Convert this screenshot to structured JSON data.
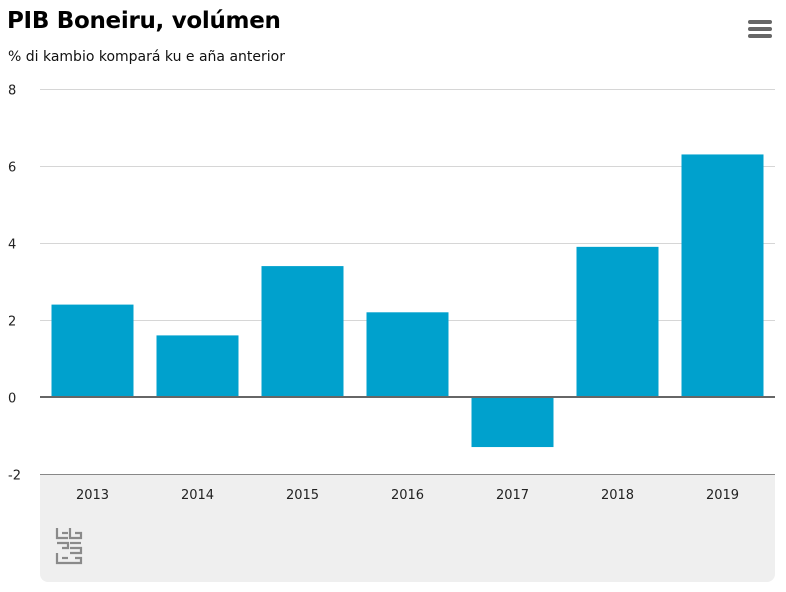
{
  "header": {
    "title": "PIB Boneiru, volúmen",
    "subtitle": "% di kambio kompará ku e aña anterior"
  },
  "menu": {
    "icon": "hamburger-menu-icon"
  },
  "logo": {
    "icon": "cbs-logo-icon",
    "text": "cbs"
  },
  "colors": {
    "bar": "#00a1cd",
    "grid": "#d6d6d6",
    "zero_line": "#666666",
    "footer_bg": "#efefef"
  },
  "chart_data": {
    "type": "bar",
    "title": "PIB Boneiru, volúmen",
    "subtitle": "% di kambio kompará ku e aña anterior",
    "categories": [
      "2013",
      "2014",
      "2015",
      "2016",
      "2017",
      "2018",
      "2019"
    ],
    "values": [
      2.4,
      1.6,
      3.4,
      2.2,
      -1.3,
      3.9,
      6.3
    ],
    "ylim": [
      -2,
      8
    ],
    "yticks": [
      8,
      6,
      4,
      2,
      0,
      -2
    ],
    "grid": true,
    "legend": "none"
  }
}
